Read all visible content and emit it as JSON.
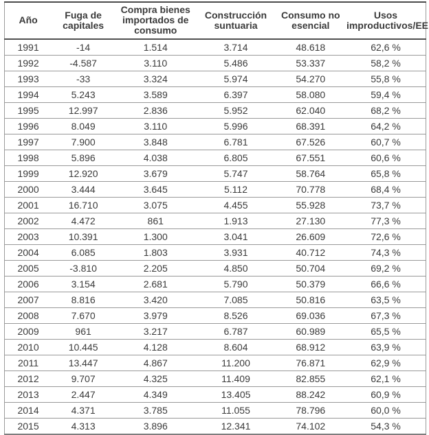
{
  "colors": {
    "background": "#ffffff",
    "text": "#3a3a3a",
    "row_line": "#989898",
    "strong_line": "#4a4a4a"
  },
  "chart_data": {
    "type": "table",
    "title": "",
    "columns": [
      "Año",
      "Fuga de capitales",
      "Compra bienes importados de consumo",
      "Construcción suntuaria",
      "Consumo no esencial",
      "Usos improductivos/EE"
    ],
    "rows": [
      [
        "1991",
        "-14",
        "1.514",
        "3.714",
        "48.618",
        "62,6 %"
      ],
      [
        "1992",
        "-4.587",
        "3.110",
        "5.486",
        "53.337",
        "58,2 %"
      ],
      [
        "1993",
        "-33",
        "3.324",
        "5.974",
        "54.270",
        "55,8 %"
      ],
      [
        "1994",
        "5.243",
        "3.589",
        "6.397",
        "58.080",
        "59,4 %"
      ],
      [
        "1995",
        "12.997",
        "2.836",
        "5.952",
        "62.040",
        "68,2 %"
      ],
      [
        "1996",
        "8.049",
        "3.110",
        "5.996",
        "68.391",
        "64,2 %"
      ],
      [
        "1997",
        "7.900",
        "3.848",
        "6.781",
        "67.526",
        "60,7 %"
      ],
      [
        "1998",
        "5.896",
        "4.038",
        "6.805",
        "67.551",
        "60,6 %"
      ],
      [
        "1999",
        "12.920",
        "3.679",
        "5.747",
        "58.764",
        "65,8 %"
      ],
      [
        "2000",
        "3.444",
        "3.645",
        "5.112",
        "70.778",
        "68,4 %"
      ],
      [
        "2001",
        "16.710",
        "3.075",
        "4.455",
        "55.928",
        "73,7 %"
      ],
      [
        "2002",
        "4.472",
        "861",
        "1.913",
        "27.130",
        "77,3 %"
      ],
      [
        "2003",
        "10.391",
        "1.300",
        "3.041",
        "26.609",
        "72,6 %"
      ],
      [
        "2004",
        "6.085",
        "1.803",
        "3.931",
        "40.712",
        "74,3 %"
      ],
      [
        "2005",
        "-3.810",
        "2.205",
        "4.850",
        "50.704",
        "69,2 %"
      ],
      [
        "2006",
        "3.154",
        "2.681",
        "5.790",
        "50.379",
        "66,6 %"
      ],
      [
        "2007",
        "8.816",
        "3.420",
        "7.085",
        "50.816",
        "63,5 %"
      ],
      [
        "2008",
        "7.670",
        "3.979",
        "8.526",
        "69.036",
        "67,3 %"
      ],
      [
        "2009",
        "961",
        "3.217",
        "6.787",
        "60.989",
        "65,5 %"
      ],
      [
        "2010",
        "10.445",
        "4.128",
        "8.604",
        "68.912",
        "63,9 %"
      ],
      [
        "2011",
        "13.447",
        "4.867",
        "11.200",
        "76.871",
        "62,9 %"
      ],
      [
        "2012",
        "9.707",
        "4.325",
        "11.409",
        "82.855",
        "62,1 %"
      ],
      [
        "2013",
        "2.447",
        "4.349",
        "13.405",
        "88.242",
        "60,9 %"
      ],
      [
        "2014",
        "4.371",
        "3.785",
        "11.055",
        "78.796",
        "60,0 %"
      ],
      [
        "2015",
        "4.313",
        "3.896",
        "12.341",
        "74.102",
        "54,3 %"
      ]
    ]
  }
}
